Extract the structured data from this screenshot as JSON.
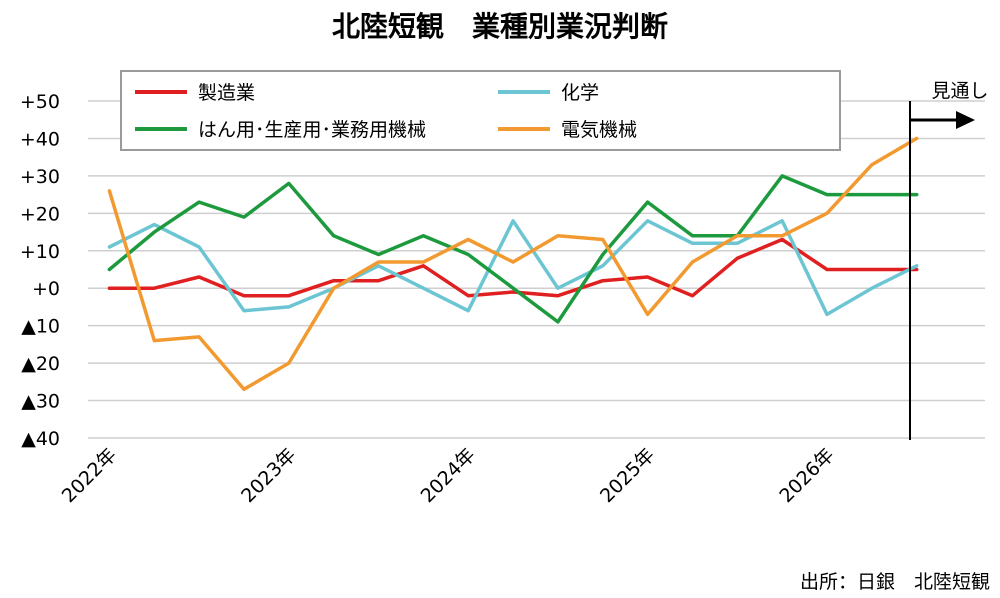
{
  "chart_data": {
    "type": "line",
    "title": "北陸短観　業種別業況判断",
    "xlabel": "",
    "ylabel": "",
    "ylim": [
      -40,
      50
    ],
    "y_ticks": [
      {
        "value": 50,
        "label": "+50"
      },
      {
        "value": 40,
        "label": "+40"
      },
      {
        "value": 30,
        "label": "+30"
      },
      {
        "value": 20,
        "label": "+20"
      },
      {
        "value": 10,
        "label": "+10"
      },
      {
        "value": 0,
        "label": "+0"
      },
      {
        "value": -10,
        "label": "▲10"
      },
      {
        "value": -20,
        "label": "▲20"
      },
      {
        "value": -30,
        "label": "▲30"
      },
      {
        "value": -40,
        "label": "▲40"
      }
    ],
    "x_count": 20,
    "x_ticks": [
      {
        "index": 0,
        "label": "2022年"
      },
      {
        "index": 4,
        "label": "2023年"
      },
      {
        "index": 8,
        "label": "2024年"
      },
      {
        "index": 12,
        "label": "2025年"
      },
      {
        "index": 16,
        "label": "2026年"
      }
    ],
    "forecast_label": "見通し",
    "forecast_index": 17.85,
    "grid": true,
    "legend_position": "top",
    "series": [
      {
        "name": "製造業",
        "color": "#e02020",
        "values": [
          0,
          0,
          3,
          -2,
          -2,
          2,
          2,
          6,
          -2,
          -1,
          -2,
          2,
          3,
          -2,
          8,
          13,
          5,
          5,
          5
        ]
      },
      {
        "name": "化学",
        "color": "#6cc5d2",
        "values": [
          11,
          17,
          11,
          -6,
          -5,
          0,
          6,
          0,
          -6,
          18,
          0,
          6,
          18,
          12,
          12,
          18,
          -7,
          0,
          6
        ]
      },
      {
        "name": "はん用･生産用･業務用機械",
        "color": "#1e9a3e",
        "values": [
          5,
          15,
          23,
          19,
          28,
          14,
          9,
          14,
          9,
          0,
          -9,
          9,
          23,
          14,
          14,
          30,
          25,
          25,
          25
        ]
      },
      {
        "name": "電気機械",
        "color": "#f29a30",
        "values": [
          26,
          -14,
          -13,
          -27,
          -20,
          0,
          7,
          7,
          13,
          7,
          14,
          13,
          -7,
          7,
          14,
          14,
          20,
          33,
          40
        ]
      }
    ]
  },
  "source": "出所：日銀　北陸短観"
}
